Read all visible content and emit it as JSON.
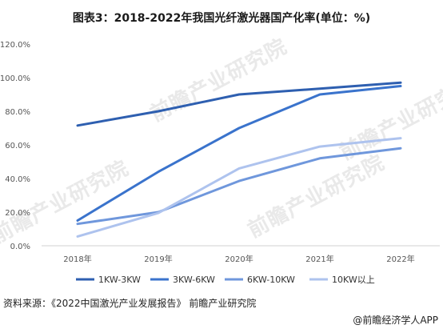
{
  "title": "图表3：2018-2022年我国光纤激光器国产化率(单位：%)",
  "source": "资料来源：《2022中国激光产业发展报告》 前瞻产业研究院",
  "brand": "@前瞻经济学人APP",
  "watermark": "前瞻产业研究院",
  "chart_data": {
    "type": "line",
    "x": [
      "2018年",
      "2019年",
      "2020年",
      "2021年",
      "2022年"
    ],
    "ylim": [
      0,
      120
    ],
    "ytick_values": [
      0,
      20,
      40,
      60,
      80,
      100,
      120
    ],
    "ytick_labels": [
      "0.0%",
      "20.0%",
      "40.0%",
      "60.0%",
      "80.0%",
      "100.0%",
      "120.0%"
    ],
    "grid": false,
    "legend_position": "bottom",
    "series": [
      {
        "name": "1KW-3KW",
        "color": "#2e5fb0",
        "values": [
          71.5,
          80,
          90,
          93.5,
          97
        ]
      },
      {
        "name": "3KW-6KW",
        "color": "#3a73cc",
        "values": [
          15,
          44,
          70,
          90,
          95
        ]
      },
      {
        "name": "6KW-10KW",
        "color": "#6f97dc",
        "values": [
          13,
          20,
          38.5,
          52,
          58
        ]
      },
      {
        "name": "10KW以上",
        "color": "#aec3ee",
        "values": [
          5.5,
          19.5,
          46,
          59,
          64
        ]
      }
    ]
  }
}
